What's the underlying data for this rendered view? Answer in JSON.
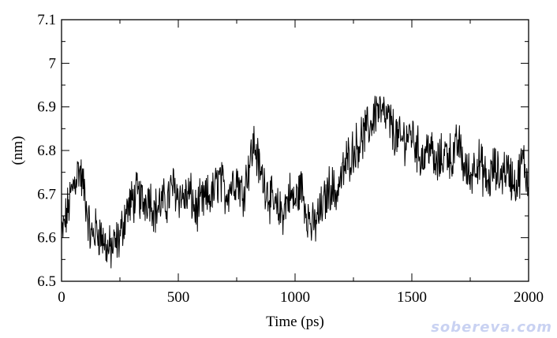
{
  "chart_data": {
    "type": "line",
    "title": "",
    "xlabel": "Time (ps)",
    "ylabel": "(nm)",
    "xlim": [
      0,
      2000
    ],
    "ylim": [
      6.5,
      7.1
    ],
    "xticks": [
      0,
      500,
      1000,
      1500,
      2000
    ],
    "xtick_labels": [
      "0",
      "500",
      "1000",
      "1500",
      "2000"
    ],
    "yticks": [
      6.5,
      6.6,
      6.7,
      6.8,
      6.9,
      7.0,
      7.1
    ],
    "ytick_labels": [
      "6.5",
      "6.6",
      "6.7",
      "6.8",
      "6.9",
      "7",
      "7.1"
    ],
    "grid": false,
    "legend": "none",
    "line_color": "#000000",
    "series": [
      {
        "x": [
          0,
          25,
          50,
          75,
          100,
          125,
          150,
          175,
          200,
          225,
          250,
          275,
          300,
          325,
          350,
          375,
          400,
          425,
          450,
          475,
          500,
          525,
          550,
          575,
          600,
          625,
          650,
          675,
          700,
          725,
          750,
          775,
          800,
          825,
          850,
          875,
          900,
          925,
          950,
          975,
          1000,
          1025,
          1050,
          1075,
          1100,
          1125,
          1150,
          1175,
          1200,
          1225,
          1250,
          1275,
          1300,
          1325,
          1350,
          1375,
          1400,
          1425,
          1450,
          1475,
          1500,
          1525,
          1550,
          1575,
          1600,
          1625,
          1650,
          1675,
          1700,
          1725,
          1750,
          1775,
          1800,
          1825,
          1850,
          1875,
          1900,
          1925,
          1950,
          1975,
          2000
        ],
        "values": [
          6.6,
          6.66,
          6.72,
          6.76,
          6.7,
          6.6,
          6.62,
          6.6,
          6.57,
          6.58,
          6.6,
          6.66,
          6.68,
          6.7,
          6.68,
          6.7,
          6.66,
          6.68,
          6.68,
          6.72,
          6.7,
          6.69,
          6.7,
          6.66,
          6.68,
          6.69,
          6.7,
          6.74,
          6.7,
          6.72,
          6.74,
          6.7,
          6.76,
          6.82,
          6.75,
          6.72,
          6.68,
          6.66,
          6.66,
          6.7,
          6.68,
          6.72,
          6.66,
          6.62,
          6.65,
          6.68,
          6.72,
          6.7,
          6.74,
          6.78,
          6.8,
          6.82,
          6.84,
          6.86,
          6.9,
          6.88,
          6.87,
          6.84,
          6.82,
          6.83,
          6.84,
          6.8,
          6.78,
          6.82,
          6.76,
          6.78,
          6.8,
          6.78,
          6.82,
          6.76,
          6.74,
          6.78,
          6.76,
          6.72,
          6.76,
          6.74,
          6.76,
          6.74,
          6.72,
          6.78,
          6.72
        ]
      }
    ]
  },
  "watermark": "sobereva.com"
}
